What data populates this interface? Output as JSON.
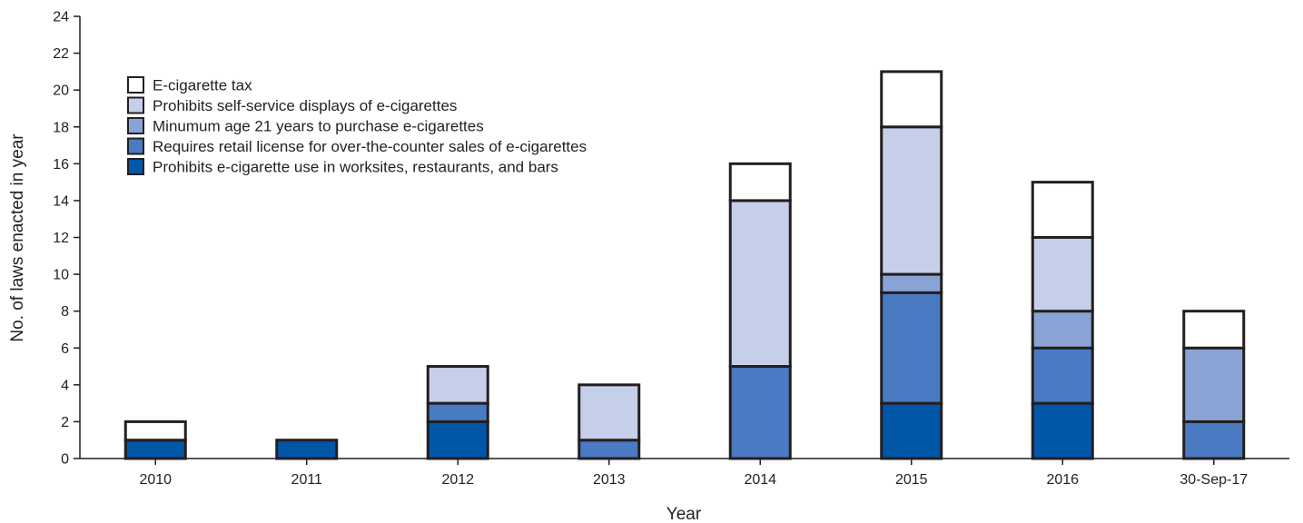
{
  "chart_data": {
    "type": "bar",
    "stacked": true,
    "title": "",
    "xlabel": "Year",
    "ylabel": "No. of laws enacted in year",
    "ylim": [
      0,
      24
    ],
    "yticks": [
      0,
      2,
      4,
      6,
      8,
      10,
      12,
      14,
      16,
      18,
      20,
      22,
      24
    ],
    "grid": false,
    "legend_position": "top-left",
    "categories": [
      "2010",
      "2011",
      "2012",
      "2013",
      "2014",
      "2015",
      "2016",
      "30-Sep-17"
    ],
    "series": [
      {
        "name": "Prohibits e-cigarette use in worksites, restaurants, and bars",
        "color": "#0057a8",
        "values": [
          1,
          1,
          2,
          0,
          0,
          3,
          3,
          0
        ]
      },
      {
        "name": "Requires retail license for over-the-counter sales of e-cigarettes",
        "color": "#4a7ac2",
        "values": [
          0,
          0,
          1,
          1,
          5,
          6,
          3,
          2
        ]
      },
      {
        "name": "Minumum age 21 years to purchase e-cigarettes",
        "color": "#8aa3d5",
        "values": [
          0,
          0,
          0,
          0,
          0,
          1,
          2,
          4
        ]
      },
      {
        "name": "Prohibits self-service displays of e-cigarettes",
        "color": "#c6cfe9",
        "values": [
          0,
          0,
          2,
          3,
          9,
          8,
          4,
          0
        ]
      },
      {
        "name": "E-cigarette tax",
        "color": "#ffffff",
        "values": [
          1,
          0,
          0,
          0,
          2,
          3,
          3,
          2
        ]
      }
    ],
    "legend_order": [
      4,
      3,
      2,
      1,
      0
    ]
  }
}
